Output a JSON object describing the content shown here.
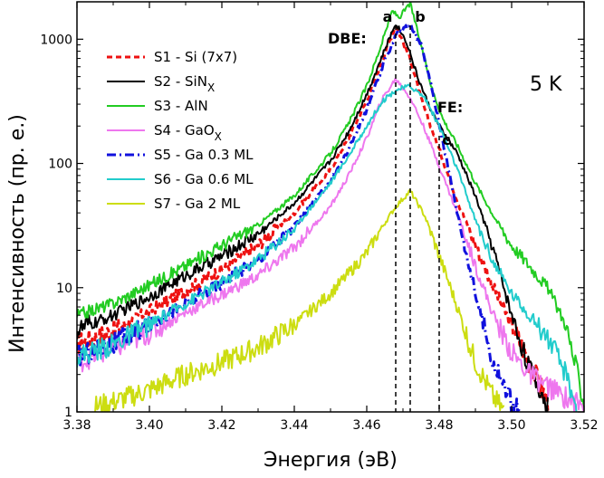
{
  "chart_data": {
    "type": "line",
    "xlabel": "Энергия (эВ)",
    "ylabel": "Интенсивность (пр. е.)",
    "xlim": [
      3.38,
      3.52
    ],
    "ylim": [
      1,
      2000
    ],
    "yscale": "log",
    "x_ticks": [
      "3.38",
      "3.40",
      "3.42",
      "3.44",
      "3.46",
      "3.48",
      "3.50",
      "3.52"
    ],
    "y_ticks": [
      "1",
      "10",
      "100",
      "1000"
    ],
    "legend_position": "top-left",
    "series": [
      {
        "id": "s1",
        "label": "S1 - Si (7x7)",
        "label_main": "S1 - Si (7x7)",
        "label_sub": "",
        "color": "#ee1111",
        "dash": "6,4",
        "width": 3,
        "x": [
          3.38,
          3.39,
          3.4,
          3.41,
          3.42,
          3.43,
          3.44,
          3.45,
          3.455,
          3.46,
          3.464,
          3.468,
          3.472,
          3.475,
          3.48,
          3.485,
          3.49,
          3.495,
          3.5,
          3.505,
          3.51
        ],
        "y": [
          3.5,
          4.5,
          6.5,
          9.5,
          14,
          22,
          40,
          90,
          160,
          320,
          650,
          1300,
          700,
          330,
          130,
          50,
          22,
          10,
          5,
          2.5,
          1.2
        ]
      },
      {
        "id": "s2",
        "label": "S2 - SiNX",
        "label_main": "S2 - SiN",
        "label_sub": "X",
        "color": "#000000",
        "dash": "",
        "width": 2,
        "x": [
          3.38,
          3.39,
          3.4,
          3.41,
          3.42,
          3.43,
          3.44,
          3.45,
          3.455,
          3.46,
          3.464,
          3.468,
          3.471,
          3.474,
          3.477,
          3.48,
          3.485,
          3.49,
          3.495,
          3.5,
          3.505,
          3.51
        ],
        "y": [
          4.5,
          6,
          8.5,
          12.5,
          18,
          27,
          48,
          105,
          180,
          360,
          700,
          1350,
          950,
          500,
          300,
          200,
          120,
          55,
          20,
          6,
          2.2,
          1.1
        ]
      },
      {
        "id": "s3",
        "label": "S3 - AlN",
        "label_main": "S3 - AlN",
        "label_sub": "",
        "color": "#22cc22",
        "dash": "",
        "width": 2,
        "x": [
          3.38,
          3.39,
          3.4,
          3.41,
          3.42,
          3.43,
          3.44,
          3.45,
          3.455,
          3.46,
          3.464,
          3.467,
          3.469,
          3.472,
          3.475,
          3.478,
          3.481,
          3.485,
          3.49,
          3.495,
          3.5,
          3.505,
          3.51,
          3.515,
          3.52
        ],
        "y": [
          6,
          7.5,
          10.5,
          15,
          22,
          32,
          55,
          120,
          210,
          420,
          900,
          1700,
          1500,
          1950,
          900,
          400,
          230,
          140,
          70,
          38,
          22,
          15,
          10,
          5,
          1.2
        ]
      },
      {
        "id": "s4",
        "label": "S4 - GaOX",
        "label_main": "S4 - GaO",
        "label_sub": "X",
        "color": "#ee77ee",
        "dash": "",
        "width": 2,
        "x": [
          3.38,
          3.39,
          3.4,
          3.41,
          3.42,
          3.43,
          3.44,
          3.45,
          3.455,
          3.46,
          3.464,
          3.468,
          3.472,
          3.476,
          3.48,
          3.485,
          3.49,
          3.495,
          3.5,
          3.505,
          3.51,
          3.515,
          3.52
        ],
        "y": [
          2.5,
          3.2,
          4.3,
          6.3,
          8.8,
          12.5,
          21,
          45,
          80,
          160,
          320,
          480,
          340,
          190,
          95,
          40,
          15,
          6,
          3,
          2,
          1.6,
          1.3,
          1.1
        ]
      },
      {
        "id": "s5",
        "label": "S5 - Ga 0.3 ML",
        "label_main": "S5 - Ga 0.3 ML",
        "label_sub": "",
        "color": "#1111dd",
        "dash": "10,4,2,4",
        "width": 3,
        "x": [
          3.38,
          3.39,
          3.4,
          3.41,
          3.42,
          3.43,
          3.44,
          3.45,
          3.455,
          3.46,
          3.464,
          3.468,
          3.472,
          3.475,
          3.478,
          3.481,
          3.485,
          3.49,
          3.495,
          3.5,
          3.502
        ],
        "y": [
          2.8,
          3.5,
          5,
          7.5,
          11,
          17,
          31,
          72,
          130,
          270,
          560,
          1100,
          1300,
          900,
          400,
          150,
          40,
          9,
          2.5,
          1.2,
          1
        ]
      },
      {
        "id": "s6",
        "label": "S6 - Ga 0.6 ML",
        "label_main": "S6 - Ga 0.6 ML",
        "label_sub": "",
        "color": "#22cccc",
        "dash": "",
        "width": 2,
        "x": [
          3.38,
          3.39,
          3.4,
          3.41,
          3.42,
          3.43,
          3.44,
          3.45,
          3.455,
          3.46,
          3.464,
          3.468,
          3.472,
          3.476,
          3.48,
          3.485,
          3.49,
          3.495,
          3.5,
          3.505,
          3.51,
          3.515,
          3.518
        ],
        "y": [
          2.8,
          3.5,
          5,
          7.5,
          11,
          17,
          30,
          70,
          115,
          200,
          310,
          390,
          420,
          340,
          200,
          90,
          35,
          16,
          9,
          6,
          4,
          2,
          1.1
        ]
      },
      {
        "id": "s7",
        "label": "S7 - Ga 2 ML",
        "label_main": "S7 - Ga 2 ML",
        "label_sub": "",
        "color": "#ccdd11",
        "dash": "",
        "width": 2,
        "x": [
          3.385,
          3.39,
          3.4,
          3.41,
          3.42,
          3.43,
          3.44,
          3.45,
          3.455,
          3.46,
          3.464,
          3.468,
          3.472,
          3.476,
          3.48,
          3.485,
          3.49,
          3.495,
          3.498
        ],
        "y": [
          1.1,
          1.2,
          1.5,
          2,
          2.5,
          3.3,
          5,
          9,
          13,
          19,
          30,
          45,
          60,
          38,
          18,
          7,
          2.5,
          1.3,
          1
        ]
      }
    ],
    "vlines": [
      {
        "label": "a",
        "x": 3.468
      },
      {
        "label": "b",
        "x": 3.472
      },
      {
        "label": "c",
        "x": 3.48
      }
    ],
    "annotations": {
      "dbe": "DBE:",
      "fe": "FE:",
      "temperature": "5 K"
    }
  }
}
